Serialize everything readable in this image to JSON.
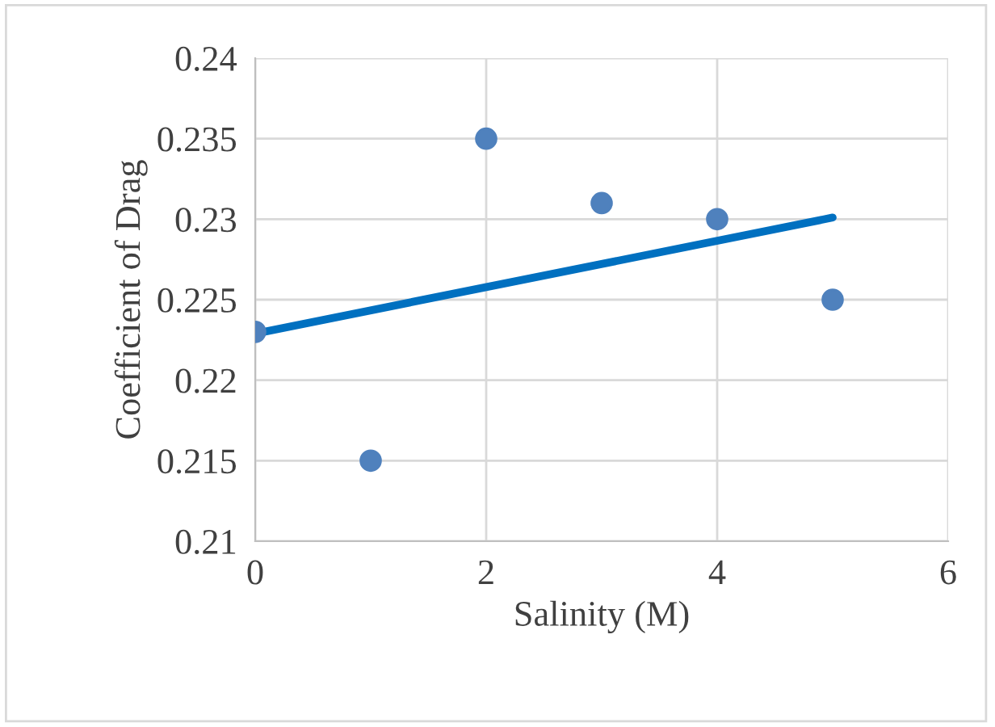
{
  "chart_data": {
    "type": "scatter",
    "xlabel": "Salinity (M)",
    "ylabel": "Coefficient of Drag",
    "series": [
      {
        "type": "scatter",
        "color": "#4f81bd",
        "marker": "circle",
        "x": [
          0,
          1,
          2,
          3,
          4,
          5
        ],
        "values": [
          0.223,
          0.215,
          0.235,
          0.231,
          0.23,
          0.225
        ]
      },
      {
        "type": "line",
        "color": "#0070c0",
        "x": [
          0,
          5
        ],
        "values": [
          0.2229,
          0.2301
        ]
      }
    ],
    "xlim": [
      0,
      6
    ],
    "xticks": [
      0,
      2,
      4,
      6
    ],
    "ylim": [
      0.21,
      0.24
    ],
    "yticks": [
      0.21,
      0.215,
      0.22,
      0.225,
      0.23,
      0.235,
      0.24
    ],
    "grid": true
  }
}
